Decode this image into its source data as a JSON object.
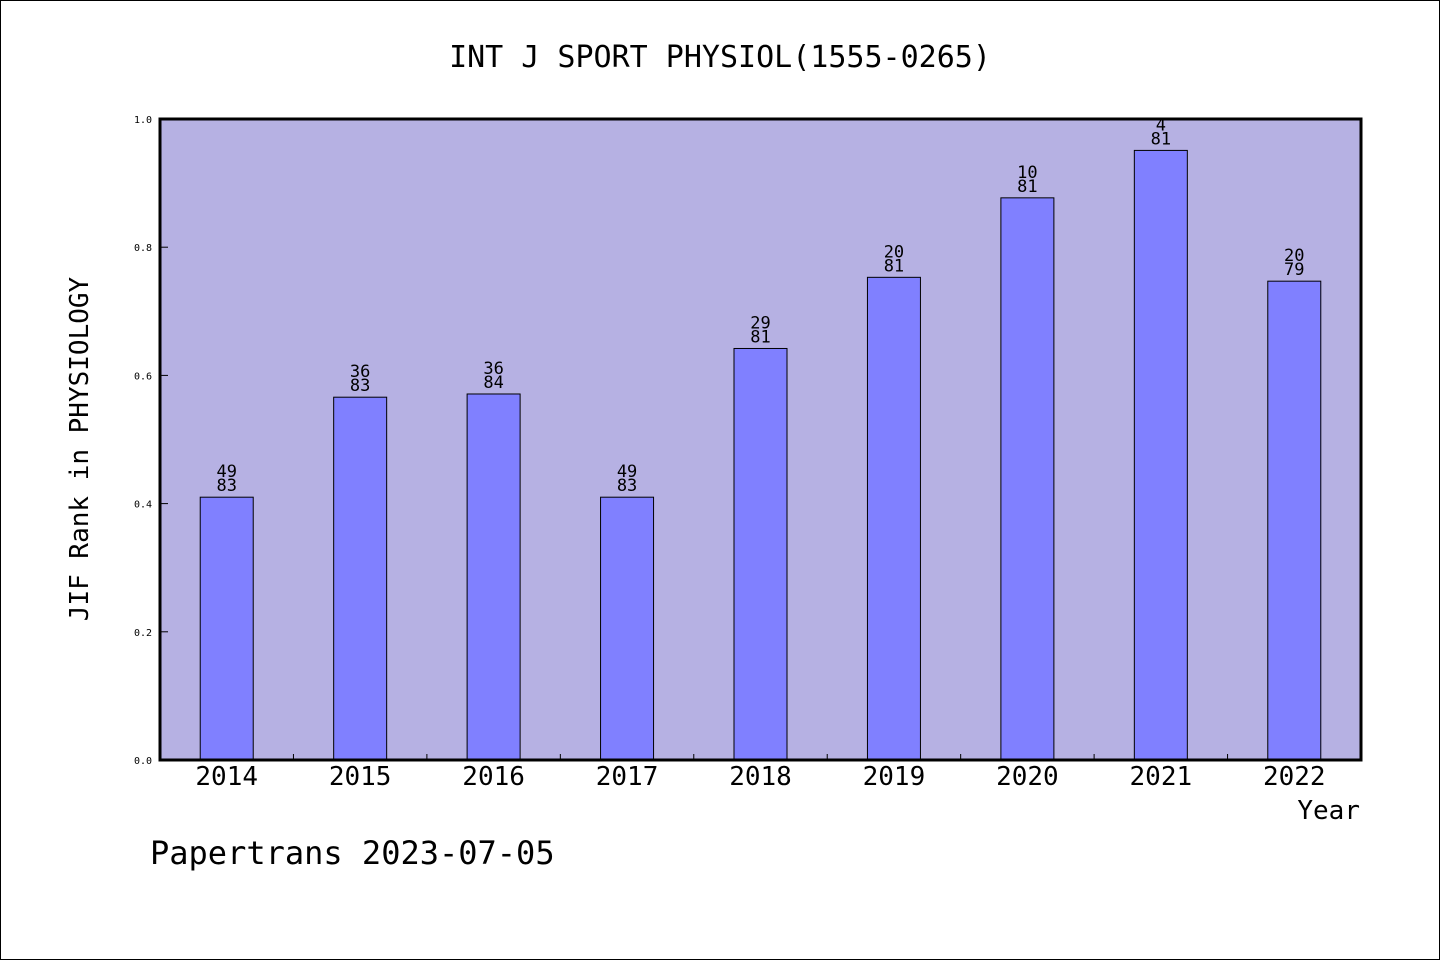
{
  "chart_data": {
    "type": "bar",
    "title": "INT J SPORT PHYSIOL(1555-0265)",
    "xlabel": "Year",
    "ylabel": "JIF Rank in PHYSIOLOGY",
    "categories": [
      "2014",
      "2015",
      "2016",
      "2017",
      "2018",
      "2019",
      "2020",
      "2021",
      "2022"
    ],
    "values": [
      0.41,
      0.566,
      0.571,
      0.41,
      0.642,
      0.753,
      0.877,
      0.951,
      0.747
    ],
    "rank_labels": [
      {
        "rank": "49",
        "total": "83"
      },
      {
        "rank": "36",
        "total": "83"
      },
      {
        "rank": "36",
        "total": "84"
      },
      {
        "rank": "49",
        "total": "83"
      },
      {
        "rank": "29",
        "total": "81"
      },
      {
        "rank": "20",
        "total": "81"
      },
      {
        "rank": "10",
        "total": "81"
      },
      {
        "rank": "4",
        "total": "81"
      },
      {
        "rank": "20",
        "total": "79"
      }
    ],
    "ylim": [
      0,
      1.0
    ],
    "yticks": [
      "0.0",
      "0.2",
      "0.4",
      "0.6",
      "0.8",
      "1.0"
    ],
    "grid": false,
    "colors": {
      "plot_background": "#b6b1e3",
      "bar_fill": "#8080ff",
      "bar_stroke": "#000000",
      "frame": "#000000"
    }
  },
  "footer": "Papertrans 2023-07-05"
}
